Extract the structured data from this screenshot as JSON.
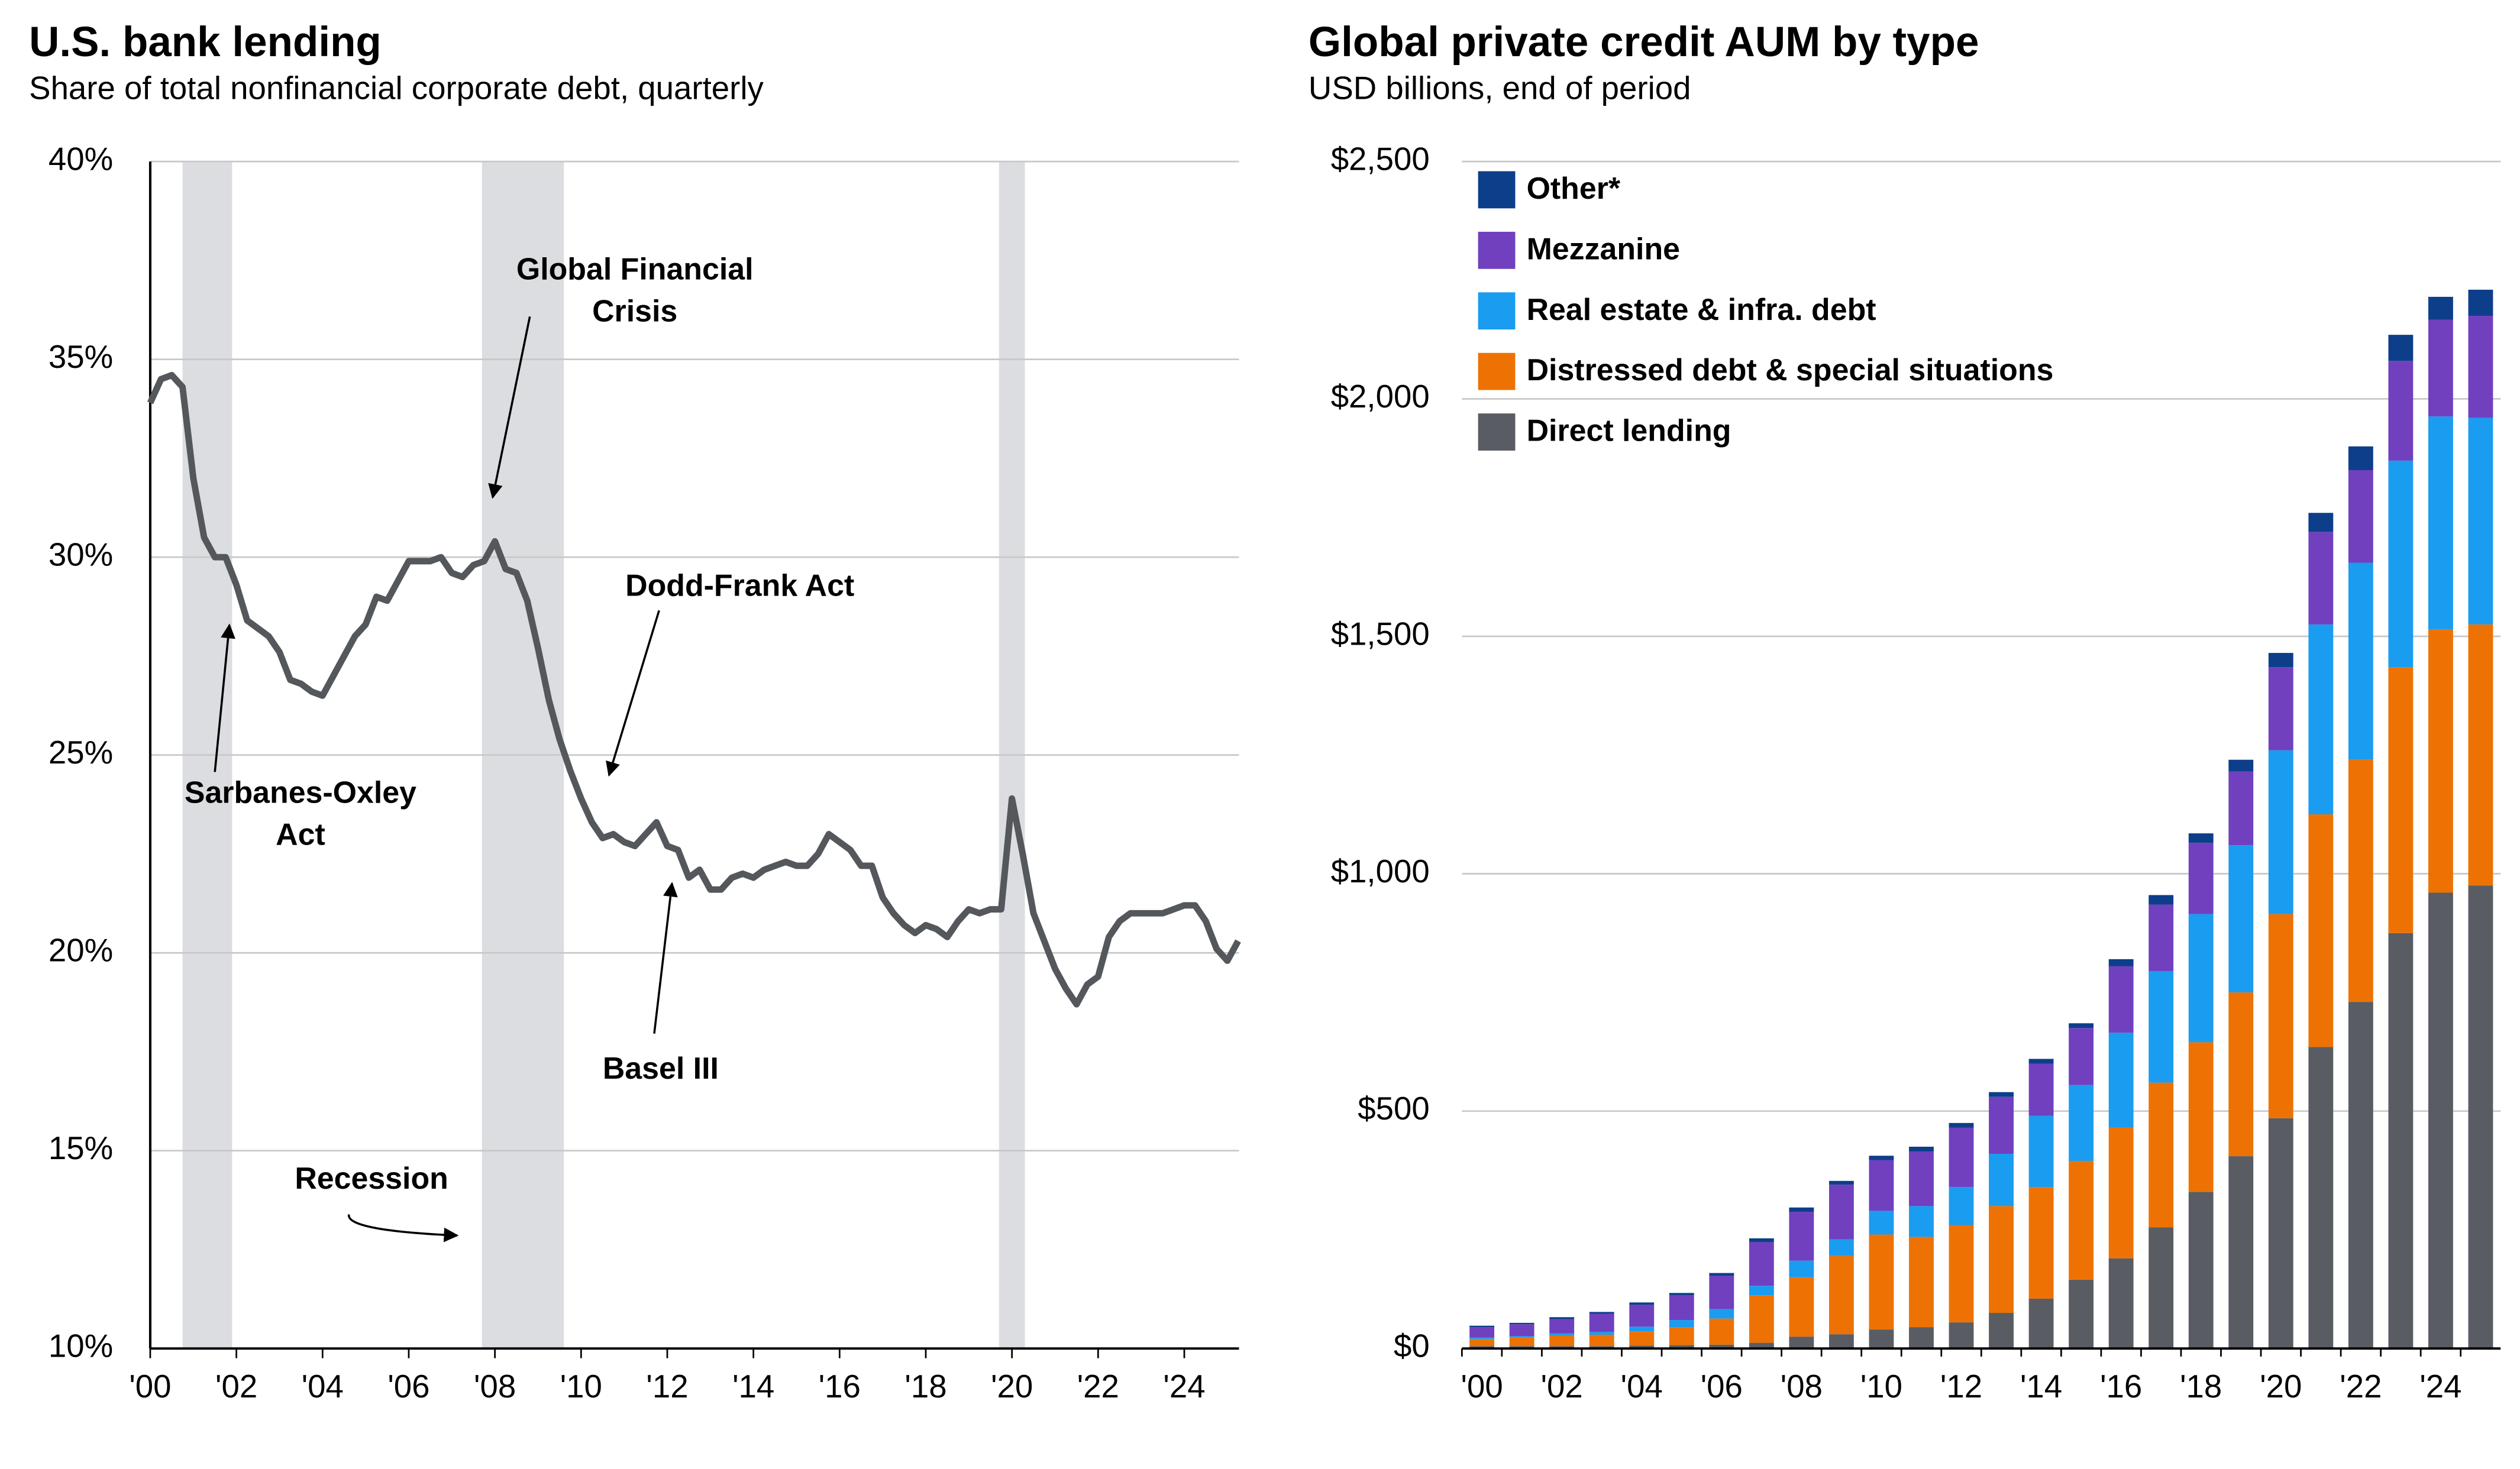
{
  "chart_data": [
    {
      "type": "line",
      "title": "U.S. bank lending",
      "subtitle": "Share of total nonfinancial corporate debt, quarterly",
      "x": [
        2000,
        2000.25,
        2000.5,
        2000.75,
        2001,
        2001.25,
        2001.5,
        2001.75,
        2002,
        2002.25,
        2002.5,
        2002.75,
        2003,
        2003.25,
        2003.5,
        2003.75,
        2004,
        2004.25,
        2004.5,
        2004.75,
        2005,
        2005.25,
        2005.5,
        2005.75,
        2006,
        2006.25,
        2006.5,
        2006.75,
        2007,
        2007.25,
        2007.5,
        2007.75,
        2008,
        2008.25,
        2008.5,
        2008.75,
        2009,
        2009.25,
        2009.5,
        2009.75,
        2010,
        2010.25,
        2010.5,
        2010.75,
        2011,
        2011.25,
        2011.5,
        2011.75,
        2012,
        2012.25,
        2012.5,
        2012.75,
        2013,
        2013.25,
        2013.5,
        2013.75,
        2014,
        2014.25,
        2014.5,
        2014.75,
        2015,
        2015.25,
        2015.5,
        2015.75,
        2016,
        2016.25,
        2016.5,
        2016.75,
        2017,
        2017.25,
        2017.5,
        2017.75,
        2018,
        2018.25,
        2018.5,
        2018.75,
        2019,
        2019.25,
        2019.5,
        2019.75,
        2020,
        2020.25,
        2020.5,
        2020.75,
        2021,
        2021.25,
        2021.5,
        2021.75,
        2022,
        2022.25,
        2022.5,
        2022.75,
        2023,
        2023.25,
        2023.5,
        2023.75,
        2024,
        2024.25,
        2024.5,
        2024.75,
        2025,
        2025.25
      ],
      "series": [
        {
          "name": "U.S. bank lending",
          "color": "#54575c",
          "values": [
            33.9,
            34.5,
            34.6,
            34.3,
            32.0,
            30.5,
            30.0,
            30.0,
            29.3,
            28.4,
            28.2,
            28.0,
            27.6,
            26.9,
            26.8,
            26.6,
            26.5,
            27.0,
            27.5,
            28.0,
            28.3,
            29.0,
            28.9,
            29.4,
            29.9,
            29.9,
            29.9,
            30.0,
            29.6,
            29.5,
            29.8,
            29.9,
            30.4,
            29.7,
            29.6,
            28.9,
            27.7,
            26.4,
            25.4,
            24.6,
            23.9,
            23.3,
            22.9,
            23.0,
            22.8,
            22.7,
            23.0,
            23.3,
            22.7,
            22.6,
            21.9,
            22.1,
            21.6,
            21.6,
            21.9,
            22.0,
            21.9,
            22.1,
            22.2,
            22.3,
            22.2,
            22.2,
            22.5,
            23.0,
            22.8,
            22.6,
            22.2,
            22.2,
            21.4,
            21.0,
            20.7,
            20.5,
            20.7,
            20.6,
            20.4,
            20.8,
            21.1,
            21.0,
            21.1,
            21.1,
            23.9,
            22.5,
            21.0,
            20.3,
            19.6,
            19.1,
            18.7,
            19.2,
            19.4,
            20.4,
            20.8,
            21.0,
            21.0,
            21.0,
            21.0,
            21.1,
            21.2,
            21.2,
            20.8,
            20.1,
            19.8,
            20.3
          ]
        }
      ],
      "recessions": [
        {
          "start": 2000.75,
          "end": 2001.9
        },
        {
          "start": 2007.7,
          "end": 2009.6
        },
        {
          "start": 2019.7,
          "end": 2020.3
        }
      ],
      "recession_label": "Recession",
      "recession_color": "#dcdde0",
      "annotations": [
        {
          "lines": [
            "Global Financial",
            "Crisis"
          ]
        },
        {
          "lines": [
            "Sarbanes-Oxley",
            "Act"
          ]
        },
        {
          "lines": [
            "Dodd-Frank Act"
          ]
        },
        {
          "lines": [
            "Basel III"
          ]
        }
      ],
      "xlim": [
        2000,
        2025.27
      ],
      "xticks": [
        {
          "value": 2000,
          "label": "'00"
        },
        {
          "value": 2002,
          "label": "'02"
        },
        {
          "value": 2004,
          "label": "'04"
        },
        {
          "value": 2006,
          "label": "'06"
        },
        {
          "value": 2008,
          "label": "'08"
        },
        {
          "value": 2010,
          "label": "'10"
        },
        {
          "value": 2012,
          "label": "'12"
        },
        {
          "value": 2014,
          "label": "'14"
        },
        {
          "value": 2016,
          "label": "'16"
        },
        {
          "value": 2018,
          "label": "'18"
        },
        {
          "value": 2020,
          "label": "'20"
        },
        {
          "value": 2022,
          "label": "'22"
        },
        {
          "value": 2024,
          "label": "'24"
        }
      ],
      "ylim": [
        10,
        40
      ],
      "yticks": [
        {
          "value": 10,
          "label": "10%"
        },
        {
          "value": 15,
          "label": "15%"
        },
        {
          "value": 20,
          "label": "20%"
        },
        {
          "value": 25,
          "label": "25%"
        },
        {
          "value": 30,
          "label": "30%"
        },
        {
          "value": 35,
          "label": "35%"
        },
        {
          "value": 40,
          "label": "40%"
        }
      ],
      "grid": true
    },
    {
      "type": "stacked_bar",
      "title": "Global private credit AUM by type",
      "subtitle": "USD billions, end of period",
      "categories": [
        "'00",
        null,
        "'02",
        null,
        "'04",
        null,
        "'06",
        null,
        "'08",
        null,
        "'10",
        null,
        "'12",
        null,
        "'14",
        null,
        "'16",
        null,
        "'18",
        null,
        "'20",
        null,
        "'22",
        null,
        "'24",
        null
      ],
      "series": [
        {
          "name": "Direct lending",
          "color": "#595d63",
          "values": [
            5,
            5,
            5,
            5,
            6,
            7,
            8,
            12,
            25,
            30,
            40,
            45,
            55,
            75,
            105,
            145,
            190,
            255,
            330,
            405,
            485,
            635,
            730,
            875,
            960,
            975
          ]
        },
        {
          "name": "Distressed debt & special situations",
          "color": "#ee7203",
          "values": [
            15,
            18,
            22,
            24,
            30,
            38,
            55,
            100,
            125,
            165,
            200,
            190,
            205,
            225,
            235,
            250,
            275,
            305,
            315,
            345,
            430,
            490,
            510,
            560,
            555,
            550
          ]
        },
        {
          "name": "Real estate & infra. debt",
          "color": "#1a9cf0",
          "values": [
            3,
            3,
            5,
            6,
            10,
            15,
            20,
            20,
            35,
            35,
            50,
            65,
            80,
            110,
            150,
            160,
            200,
            235,
            270,
            310,
            345,
            400,
            415,
            435,
            448,
            435
          ]
        },
        {
          "name": "Mezzanine",
          "color": "#7040bf",
          "values": [
            22,
            25,
            30,
            38,
            46,
            52,
            70,
            92,
            103,
            115,
            107,
            115,
            125,
            120,
            110,
            120,
            140,
            140,
            150,
            155,
            175,
            195,
            195,
            210,
            204,
            215
          ]
        },
        {
          "name": "Other*",
          "color": "#0d3e8a",
          "values": [
            3,
            3,
            4,
            4,
            5,
            5,
            6,
            8,
            9,
            8,
            9,
            10,
            10,
            10,
            10,
            10,
            15,
            20,
            20,
            25,
            30,
            40,
            50,
            55,
            48,
            55
          ]
        }
      ],
      "ylim": [
        0,
        2500
      ],
      "yticks": [
        {
          "value": 0,
          "label": "$0"
        },
        {
          "value": 500,
          "label": "$500"
        },
        {
          "value": 1000,
          "label": "$1,000"
        },
        {
          "value": 1500,
          "label": "$1,500"
        },
        {
          "value": 2000,
          "label": "$2,000"
        },
        {
          "value": 2500,
          "label": "$2,500"
        }
      ],
      "grid": true
    }
  ]
}
